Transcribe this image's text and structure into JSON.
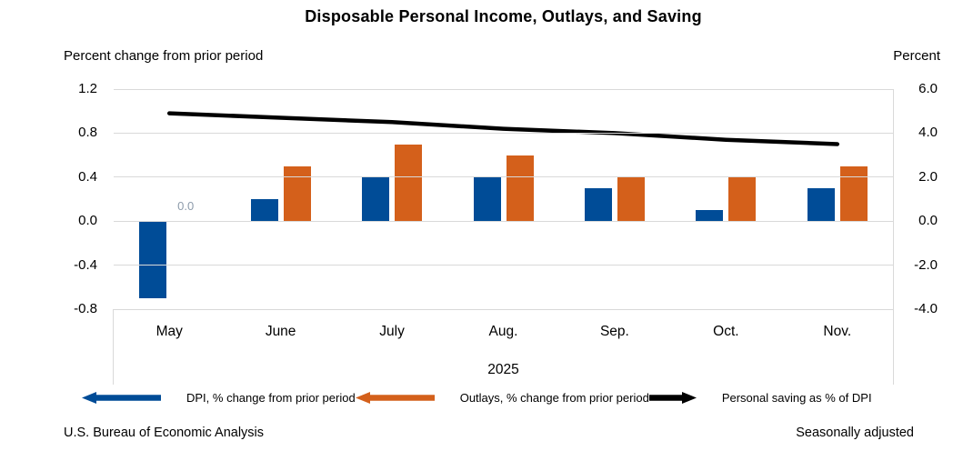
{
  "title": "Disposable Personal Income, Outlays, and Saving",
  "axis_headers": {
    "left": "Percent change from prior period",
    "right": "Percent"
  },
  "x_axis": {
    "year_label": "2025"
  },
  "footer": {
    "source": "U.S. Bureau of Economic Analysis",
    "note": "Seasonally adjusted"
  },
  "colors": {
    "dpi_bar": "#004C97",
    "outlays_bar": "#D4601B",
    "saving_line": "#000000",
    "gridline": "#D9D9D9",
    "zero_label_gray": "#8D9BAB"
  },
  "chart_data": {
    "type": "bar",
    "subtype": "grouped-bars-with-line-overlay",
    "categories": [
      "May",
      "June",
      "July",
      "Aug.",
      "Sep.",
      "Oct.",
      "Nov."
    ],
    "series": [
      {
        "name": "DPI, % change from prior period",
        "type": "bar",
        "axis": "left",
        "color": "#004C97",
        "legend_marker": "left-arrow-icon",
        "values": [
          -0.7,
          0.2,
          0.4,
          0.4,
          0.3,
          0.1,
          0.3
        ]
      },
      {
        "name": "Outlays, % change from prior period",
        "type": "bar",
        "axis": "left",
        "color": "#D4601B",
        "legend_marker": "left-arrow-icon",
        "values": [
          0.0,
          0.5,
          0.7,
          0.6,
          0.4,
          0.4,
          0.5
        ]
      },
      {
        "name": "Personal saving as % of DPI",
        "type": "line",
        "axis": "right",
        "color": "#000000",
        "legend_marker": "right-arrow-icon",
        "values": [
          4.9,
          4.7,
          4.5,
          4.2,
          4.0,
          3.7,
          3.5
        ]
      }
    ],
    "left_axis": {
      "ticks": [
        1.2,
        0.8,
        0.4,
        0.0,
        -0.4,
        -0.8
      ],
      "range": [
        -0.8,
        1.2
      ]
    },
    "right_axis": {
      "ticks": [
        6.0,
        4.0,
        2.0,
        0.0,
        -2.0,
        -4.0
      ],
      "range": [
        -4.0,
        6.0
      ]
    },
    "annotations": [
      {
        "text": "0.0",
        "category_index": 0,
        "series_index": 1
      }
    ],
    "grid": true,
    "legend_position": "bottom"
  }
}
